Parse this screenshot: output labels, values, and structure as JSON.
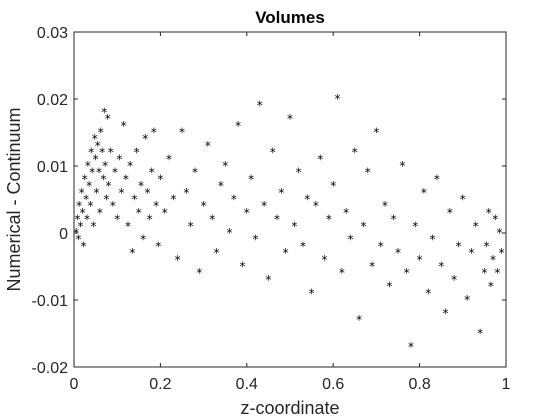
{
  "chart_data": {
    "type": "scatter",
    "title": "Volumes",
    "xlabel": "z-coordinate",
    "ylabel": "Numerical - Continuum",
    "xlim": [
      0,
      1
    ],
    "ylim": [
      -0.02,
      0.03
    ],
    "xticks": [
      "0",
      "0.2",
      "0.4",
      "0.6",
      "0.8",
      "1"
    ],
    "yticks": [
      "-0.02",
      "-0.01",
      "0",
      "0.01",
      "0.02",
      "0.03"
    ],
    "marker": "*",
    "marker_color": "#000000",
    "grid": false,
    "series": [
      {
        "points": [
          [
            0.005,
            0.0
          ],
          [
            0.008,
            0.002
          ],
          [
            0.01,
            -0.001
          ],
          [
            0.012,
            0.004
          ],
          [
            0.015,
            0.001
          ],
          [
            0.018,
            0.006
          ],
          [
            0.02,
            0.003
          ],
          [
            0.022,
            -0.002
          ],
          [
            0.025,
            0.008
          ],
          [
            0.028,
            0.005
          ],
          [
            0.03,
            0.002
          ],
          [
            0.032,
            0.01
          ],
          [
            0.035,
            0.007
          ],
          [
            0.038,
            0.004
          ],
          [
            0.04,
            0.012
          ],
          [
            0.042,
            0.009
          ],
          [
            0.045,
            0.001
          ],
          [
            0.048,
            0.014
          ],
          [
            0.05,
            0.011
          ],
          [
            0.052,
            0.006
          ],
          [
            0.055,
            0.013
          ],
          [
            0.058,
            0.009
          ],
          [
            0.06,
            0.003
          ],
          [
            0.062,
            0.015
          ],
          [
            0.065,
            0.012
          ],
          [
            0.068,
            0.008
          ],
          [
            0.07,
            0.018
          ],
          [
            0.072,
            0.01
          ],
          [
            0.075,
            0.005
          ],
          [
            0.078,
            0.017
          ],
          [
            0.08,
            0.007
          ],
          [
            0.085,
            0.012
          ],
          [
            0.09,
            0.004
          ],
          [
            0.095,
            0.009
          ],
          [
            0.1,
            0.002
          ],
          [
            0.105,
            0.011
          ],
          [
            0.11,
            0.006
          ],
          [
            0.115,
            0.016
          ],
          [
            0.12,
            0.008
          ],
          [
            0.125,
            0.001
          ],
          [
            0.13,
            0.01
          ],
          [
            0.135,
            -0.003
          ],
          [
            0.14,
            0.005
          ],
          [
            0.145,
            0.012
          ],
          [
            0.15,
            0.003
          ],
          [
            0.155,
            0.007
          ],
          [
            0.16,
            -0.001
          ],
          [
            0.165,
            0.014
          ],
          [
            0.17,
            0.006
          ],
          [
            0.175,
            0.002
          ],
          [
            0.18,
            0.009
          ],
          [
            0.185,
            0.015
          ],
          [
            0.19,
            0.004
          ],
          [
            0.195,
            -0.002
          ],
          [
            0.2,
            0.008
          ],
          [
            0.21,
            0.003
          ],
          [
            0.22,
            0.011
          ],
          [
            0.23,
            0.005
          ],
          [
            0.24,
            -0.004
          ],
          [
            0.25,
            0.015
          ],
          [
            0.26,
            0.006
          ],
          [
            0.27,
            0.001
          ],
          [
            0.28,
            0.009
          ],
          [
            0.29,
            -0.006
          ],
          [
            0.3,
            0.004
          ],
          [
            0.31,
            0.013
          ],
          [
            0.32,
            0.002
          ],
          [
            0.33,
            -0.003
          ],
          [
            0.34,
            0.007
          ],
          [
            0.35,
            0.01
          ],
          [
            0.36,
            0.0
          ],
          [
            0.37,
            0.005
          ],
          [
            0.38,
            0.016
          ],
          [
            0.39,
            -0.005
          ],
          [
            0.4,
            0.003
          ],
          [
            0.41,
            0.008
          ],
          [
            0.42,
            -0.001
          ],
          [
            0.43,
            0.019
          ],
          [
            0.44,
            0.004
          ],
          [
            0.45,
            -0.007
          ],
          [
            0.46,
            0.012
          ],
          [
            0.47,
            0.002
          ],
          [
            0.48,
            0.006
          ],
          [
            0.49,
            -0.003
          ],
          [
            0.5,
            0.017
          ],
          [
            0.51,
            0.001
          ],
          [
            0.52,
            0.009
          ],
          [
            0.53,
            -0.002
          ],
          [
            0.54,
            0.005
          ],
          [
            0.55,
            -0.009
          ],
          [
            0.56,
            0.004
          ],
          [
            0.57,
            0.011
          ],
          [
            0.58,
            -0.004
          ],
          [
            0.59,
            0.002
          ],
          [
            0.6,
            0.007
          ],
          [
            0.61,
            0.02
          ],
          [
            0.62,
            -0.006
          ],
          [
            0.63,
            0.003
          ],
          [
            0.64,
            -0.001
          ],
          [
            0.65,
            0.012
          ],
          [
            0.66,
            -0.013
          ],
          [
            0.67,
            0.001
          ],
          [
            0.68,
            0.009
          ],
          [
            0.69,
            -0.005
          ],
          [
            0.7,
            0.015
          ],
          [
            0.71,
            -0.002
          ],
          [
            0.72,
            0.004
          ],
          [
            0.73,
            -0.008
          ],
          [
            0.74,
            0.002
          ],
          [
            0.75,
            -0.003
          ],
          [
            0.76,
            0.01
          ],
          [
            0.77,
            -0.006
          ],
          [
            0.78,
            -0.017
          ],
          [
            0.79,
            0.001
          ],
          [
            0.8,
            -0.004
          ],
          [
            0.81,
            0.006
          ],
          [
            0.82,
            -0.009
          ],
          [
            0.83,
            -0.001
          ],
          [
            0.84,
            0.008
          ],
          [
            0.85,
            -0.005
          ],
          [
            0.86,
            -0.012
          ],
          [
            0.87,
            0.003
          ],
          [
            0.88,
            -0.007
          ],
          [
            0.89,
            -0.002
          ],
          [
            0.9,
            0.005
          ],
          [
            0.91,
            -0.01
          ],
          [
            0.92,
            -0.003
          ],
          [
            0.93,
            0.001
          ],
          [
            0.94,
            -0.015
          ],
          [
            0.95,
            -0.006
          ],
          [
            0.955,
            -0.002
          ],
          [
            0.96,
            0.003
          ],
          [
            0.965,
            -0.008
          ],
          [
            0.97,
            -0.004
          ],
          [
            0.975,
            0.002
          ],
          [
            0.98,
            -0.006
          ],
          [
            0.985,
            0.0
          ],
          [
            0.99,
            -0.003
          ]
        ]
      }
    ]
  }
}
